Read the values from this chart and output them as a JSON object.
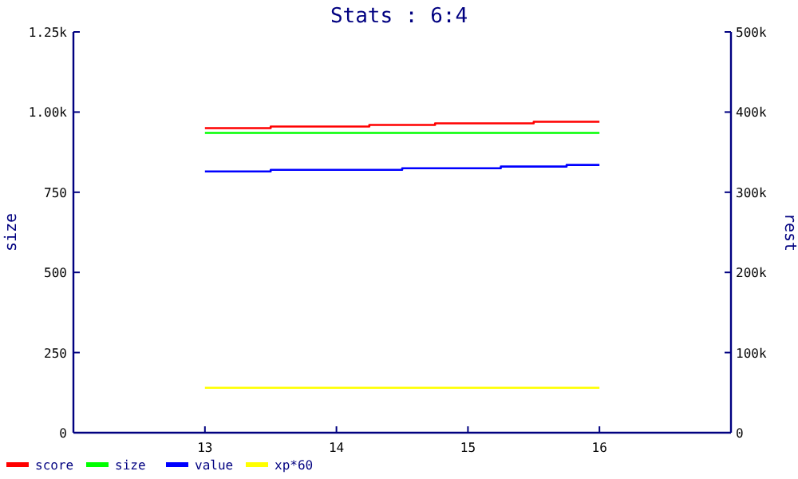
{
  "chart_data": {
    "type": "step",
    "title": "Stats : 6:4",
    "ylabel": "size",
    "y2label": "rest",
    "xlim": [
      12,
      17
    ],
    "xticks": [
      13,
      14,
      15,
      16
    ],
    "ylim": [
      0,
      1250
    ],
    "yticks": [
      0,
      250,
      500,
      750,
      {
        "value": 1000,
        "label": "1.00k"
      },
      {
        "value": 1250,
        "label": "1.25k"
      }
    ],
    "y2lim": [
      0,
      500000
    ],
    "y2ticks": [
      0,
      {
        "value": 100000,
        "label": "100k"
      },
      {
        "value": 200000,
        "label": "200k"
      },
      {
        "value": 300000,
        "label": "300k"
      },
      {
        "value": 400000,
        "label": "400k"
      },
      {
        "value": 500000,
        "label": "500k"
      }
    ],
    "series": [
      {
        "name": "score",
        "color": "#ff0000",
        "x": [
          13,
          13.5,
          14.25,
          14.75,
          15.5,
          16
        ],
        "values": [
          950,
          955,
          960,
          965,
          970,
          970
        ]
      },
      {
        "name": "size",
        "color": "#00ff00",
        "x": [
          13,
          16
        ],
        "values": [
          935,
          935
        ]
      },
      {
        "name": "value",
        "color": "#0000ff",
        "x": [
          13,
          13.5,
          14.5,
          15.25,
          15.75,
          16
        ],
        "values": [
          815,
          820,
          825,
          830,
          835,
          835
        ]
      },
      {
        "name": "xp*60",
        "color": "#ffff00",
        "x": [
          13,
          16
        ],
        "values": [
          140,
          140
        ]
      }
    ],
    "legend": "bottom left",
    "grid": false
  }
}
